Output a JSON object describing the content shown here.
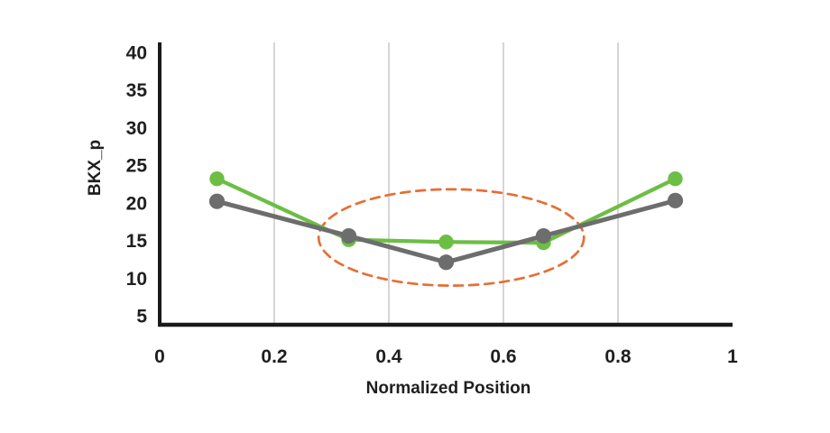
{
  "chart_data": {
    "type": "line",
    "title": "",
    "xlabel": "Normalized Position",
    "ylabel": "BKX_p",
    "x": [
      0.1,
      0.33,
      0.5,
      0.67,
      0.9
    ],
    "series": [
      {
        "name": "green-series",
        "color": "#6CBE45",
        "marker": "circle",
        "values": [
          23.2,
          15.1,
          14.8,
          14.7,
          23.2
        ]
      },
      {
        "name": "gray-series",
        "color": "#6D6D6D",
        "marker": "circle",
        "values": [
          20.2,
          15.6,
          12.1,
          15.6,
          20.3
        ]
      }
    ],
    "xlim": [
      0,
      1
    ],
    "ylim": [
      5,
      40
    ],
    "x_tick_values": [
      0,
      0.2,
      0.4,
      0.6,
      0.8,
      1
    ],
    "x_tick_labels": [
      "0",
      "0.2",
      "0.4",
      "0.6",
      "0.8",
      "1"
    ],
    "y_tick_values": [
      5,
      10,
      15,
      20,
      25,
      30,
      35,
      40
    ],
    "y_tick_labels": [
      "5",
      "10",
      "15",
      "20",
      "25",
      "30",
      "35",
      "40"
    ],
    "grid": "vertical-only",
    "grid_x_values": [
      0.2,
      0.4,
      0.6,
      0.8
    ],
    "legend": "none",
    "annotation": {
      "type": "ellipse",
      "style": "dashed",
      "color": "#E56F35",
      "center": {
        "x": 0.509,
        "y": 15.4
      },
      "radius": {
        "x": 0.2315,
        "y": 6.4
      },
      "note": "highlights the three central point pairs"
    }
  },
  "colors": {
    "axis": "#1A1A1A",
    "gridline": "#C8C8C8",
    "background": "#FFFFFF",
    "tick_text": "#1F1F1F"
  }
}
